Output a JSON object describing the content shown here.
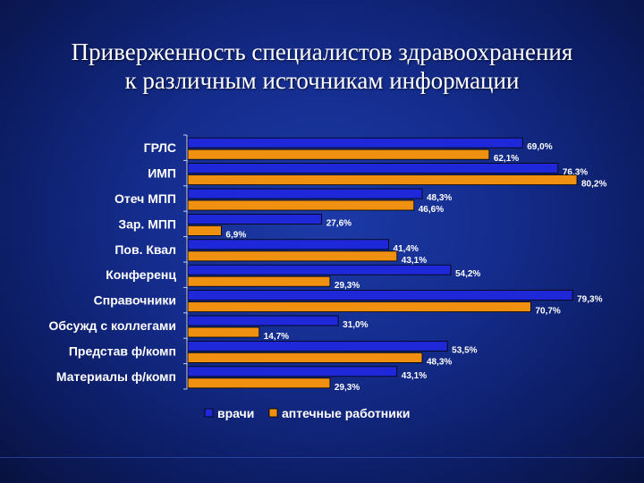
{
  "title": {
    "line1": "Приверженность специалистов здравоохранения",
    "line2": "к различным источникам информации"
  },
  "chart_data": {
    "type": "bar",
    "orientation": "horizontal",
    "categories": [
      "ГРЛС",
      "ИМП",
      "Отеч МПП",
      "Зар. МПП",
      "Пов. Квал",
      "Конференц",
      "Справочники",
      "Обсужд с коллегами",
      "Представ ф/комп",
      "Материалы ф/комп"
    ],
    "series": [
      {
        "name": "врачи",
        "color": "#1e28d8",
        "values": [
          69.0,
          76.3,
          48.3,
          27.6,
          41.4,
          54.2,
          79.3,
          31.0,
          53.5,
          43.1
        ],
        "labels": [
          "69,0%",
          "76,3%",
          "48,3%",
          "27,6%",
          "41,4%",
          "54,2%",
          "79,3%",
          "31,0%",
          "53,5%",
          "43,1%"
        ]
      },
      {
        "name": "аптечные работники",
        "color": "#f09010",
        "values": [
          62.1,
          80.2,
          46.6,
          6.9,
          43.1,
          29.3,
          70.7,
          14.7,
          48.3,
          29.3
        ],
        "labels": [
          "62,1%",
          "80,2%",
          "46,6%",
          "6,9%",
          "43,1%",
          "29,3%",
          "70,7%",
          "14,7%",
          "48,3%",
          "29,3%"
        ]
      }
    ],
    "xlim": [
      0,
      80.2
    ],
    "legend_position": "bottom",
    "grid": false
  }
}
